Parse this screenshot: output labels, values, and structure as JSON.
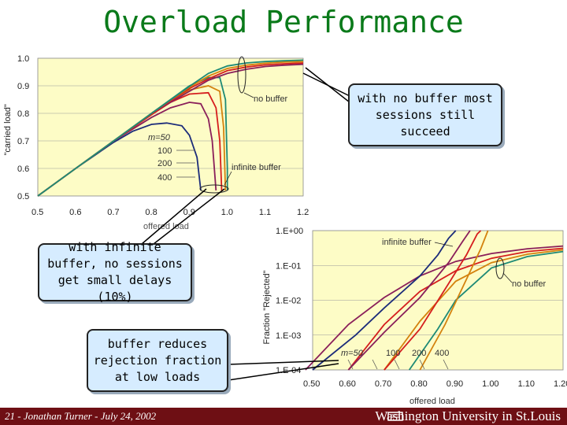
{
  "slide": {
    "title": "Overload Performance",
    "footer_left": "21 - Jonathan Turner - July 24, 2002",
    "footer_right": "Washington University in St.Louis"
  },
  "callouts": {
    "top_right": "with no buffer most sessions still succeed",
    "left": "with infinite buffer, no sessions get small delays (10%)",
    "bottom_left": "buffer reduces rejection fraction at low loads"
  },
  "colors": {
    "plot_bg": "#fdfcc6",
    "footer": "#6e0f14",
    "title": "#0a7a1a",
    "series": [
      "#1c2c7a",
      "#8a1f5a",
      "#d51e1e",
      "#d4820e",
      "#1e8a76"
    ]
  },
  "chart_data": [
    {
      "type": "line",
      "title": "",
      "xlabel": "offered load",
      "ylabel": "\"carried load\"",
      "xlim": [
        0.5,
        1.2
      ],
      "ylim": [
        0.5,
        1.0
      ],
      "x_ticks": [
        "0.5",
        "0.6",
        "0.7",
        "0.8",
        "0.9",
        "1.0",
        "1.1",
        "1.2"
      ],
      "y_ticks": [
        "0.5",
        "0.6",
        "0.7",
        "0.8",
        "0.9",
        "1.0"
      ],
      "grid": true,
      "annotations": {
        "no_buffer": "no buffer",
        "infinite_buffer": "infinite buffer",
        "m_label": "m=50",
        "m_values": [
          "100",
          "200",
          "400"
        ]
      },
      "series": [
        {
          "values": [
            [
              0.5,
              0.5
            ],
            [
              0.6,
              0.6
            ],
            [
              0.7,
              0.695
            ],
            [
              0.75,
              0.735
            ],
            [
              0.8,
              0.76
            ],
            [
              0.84,
              0.765
            ],
            [
              0.88,
              0.755
            ],
            [
              0.9,
              0.72
            ],
            [
              0.92,
              0.64
            ],
            [
              0.93,
              0.52
            ]
          ]
        },
        {
          "values": [
            [
              0.5,
              0.5
            ],
            [
              0.6,
              0.6
            ],
            [
              0.7,
              0.7
            ],
            [
              0.8,
              0.785
            ],
            [
              0.85,
              0.82
            ],
            [
              0.9,
              0.84
            ],
            [
              0.93,
              0.835
            ],
            [
              0.95,
              0.78
            ],
            [
              0.96,
              0.7
            ],
            [
              0.97,
              0.52
            ]
          ]
        },
        {
          "values": [
            [
              0.5,
              0.5
            ],
            [
              0.6,
              0.6
            ],
            [
              0.7,
              0.7
            ],
            [
              0.8,
              0.795
            ],
            [
              0.85,
              0.84
            ],
            [
              0.9,
              0.87
            ],
            [
              0.95,
              0.875
            ],
            [
              0.97,
              0.82
            ],
            [
              0.98,
              0.7
            ],
            [
              0.985,
              0.52
            ]
          ]
        },
        {
          "values": [
            [
              0.5,
              0.5
            ],
            [
              0.6,
              0.6
            ],
            [
              0.7,
              0.7
            ],
            [
              0.8,
              0.8
            ],
            [
              0.85,
              0.845
            ],
            [
              0.9,
              0.885
            ],
            [
              0.95,
              0.9
            ],
            [
              0.98,
              0.88
            ],
            [
              0.99,
              0.75
            ],
            [
              0.995,
              0.52
            ]
          ]
        },
        {
          "values": [
            [
              0.5,
              0.5
            ],
            [
              0.6,
              0.6
            ],
            [
              0.7,
              0.7
            ],
            [
              0.8,
              0.8
            ],
            [
              0.9,
              0.9
            ],
            [
              0.95,
              0.93
            ],
            [
              0.98,
              0.93
            ],
            [
              0.995,
              0.85
            ],
            [
              1.0,
              0.6
            ],
            [
              1.0,
              0.52
            ]
          ]
        },
        {
          "values": [
            [
              0.8,
              0.8
            ],
            [
              0.85,
              0.84
            ],
            [
              0.9,
              0.88
            ],
            [
              0.95,
              0.92
            ],
            [
              1.0,
              0.945
            ],
            [
              1.05,
              0.96
            ],
            [
              1.1,
              0.97
            ],
            [
              1.15,
              0.975
            ],
            [
              1.2,
              0.978
            ]
          ]
        },
        {
          "values": [
            [
              0.8,
              0.8
            ],
            [
              0.85,
              0.845
            ],
            [
              0.9,
              0.89
            ],
            [
              0.95,
              0.925
            ],
            [
              1.0,
              0.955
            ],
            [
              1.05,
              0.968
            ],
            [
              1.1,
              0.976
            ],
            [
              1.15,
              0.98
            ],
            [
              1.2,
              0.983
            ]
          ]
        },
        {
          "values": [
            [
              0.8,
              0.8
            ],
            [
              0.85,
              0.848
            ],
            [
              0.9,
              0.895
            ],
            [
              0.95,
              0.935
            ],
            [
              1.0,
              0.963
            ],
            [
              1.05,
              0.975
            ],
            [
              1.1,
              0.982
            ],
            [
              1.15,
              0.986
            ],
            [
              1.2,
              0.988
            ]
          ]
        },
        {
          "values": [
            [
              0.8,
              0.8
            ],
            [
              0.85,
              0.849
            ],
            [
              0.9,
              0.898
            ],
            [
              0.95,
              0.945
            ],
            [
              1.0,
              0.972
            ],
            [
              1.05,
              0.983
            ],
            [
              1.1,
              0.988
            ],
            [
              1.15,
              0.991
            ],
            [
              1.2,
              0.993
            ]
          ]
        }
      ]
    },
    {
      "type": "line",
      "title": "",
      "xlabel": "offered load",
      "ylabel": "Fraction \"Rejected\"",
      "xlim": [
        0.5,
        1.2
      ],
      "ylim": [
        0.0001,
        1
      ],
      "log_y": true,
      "x_ticks": [
        "0.50",
        "0.60",
        "0.70",
        "0.80",
        "0.90",
        "1.00",
        "1.10",
        "1.20"
      ],
      "y_ticks": [
        "1.E+00",
        "1.E-01",
        "1.E-02",
        "1.E-03",
        "1.E-04"
      ],
      "grid": true,
      "annotations": {
        "no_buffer": "no buffer",
        "infinite_buffer": "infinite buffer",
        "m_label": "m=50",
        "m_values": [
          "100",
          "200",
          "400"
        ]
      },
      "series": [
        {
          "values": [
            [
              0.48,
              0.0001
            ],
            [
              0.6,
              0.002
            ],
            [
              0.7,
              0.012
            ],
            [
              0.8,
              0.05
            ],
            [
              0.9,
              0.13
            ],
            [
              1.0,
              0.22
            ],
            [
              1.1,
              0.3
            ],
            [
              1.2,
              0.36
            ]
          ]
        },
        {
          "values": [
            [
              0.6,
              0.0001
            ],
            [
              0.7,
              0.002
            ],
            [
              0.8,
              0.018
            ],
            [
              0.9,
              0.07
            ],
            [
              1.0,
              0.16
            ],
            [
              1.1,
              0.25
            ],
            [
              1.2,
              0.31
            ]
          ]
        },
        {
          "values": [
            [
              0.7,
              0.0001
            ],
            [
              0.8,
              0.0025
            ],
            [
              0.9,
              0.035
            ],
            [
              1.0,
              0.12
            ],
            [
              1.1,
              0.21
            ],
            [
              1.2,
              0.28
            ]
          ]
        },
        {
          "values": [
            [
              0.77,
              0.0001
            ],
            [
              0.85,
              0.0015
            ],
            [
              0.9,
              0.01
            ],
            [
              1.0,
              0.085
            ],
            [
              1.1,
              0.18
            ],
            [
              1.2,
              0.25
            ]
          ]
        },
        {
          "values": [
            [
              0.5,
              0.0001
            ],
            [
              0.62,
              0.001
            ],
            [
              0.7,
              0.006
            ],
            [
              0.8,
              0.05
            ],
            [
              0.85,
              0.2
            ],
            [
              0.88,
              0.6
            ],
            [
              0.9,
              1.0
            ]
          ]
        },
        {
          "values": [
            [
              0.6,
              0.0001
            ],
            [
              0.7,
              0.0012
            ],
            [
              0.8,
              0.012
            ],
            [
              0.88,
              0.12
            ],
            [
              0.92,
              0.5
            ],
            [
              0.94,
              1.0
            ]
          ]
        },
        {
          "values": [
            [
              0.7,
              0.0001
            ],
            [
              0.8,
              0.0015
            ],
            [
              0.88,
              0.03
            ],
            [
              0.93,
              0.2
            ],
            [
              0.96,
              0.8
            ],
            [
              0.97,
              1.0
            ]
          ]
        },
        {
          "values": [
            [
              0.8,
              0.0001
            ],
            [
              0.87,
              0.002
            ],
            [
              0.93,
              0.04
            ],
            [
              0.97,
              0.3
            ],
            [
              0.99,
              1.0
            ]
          ]
        }
      ]
    }
  ]
}
